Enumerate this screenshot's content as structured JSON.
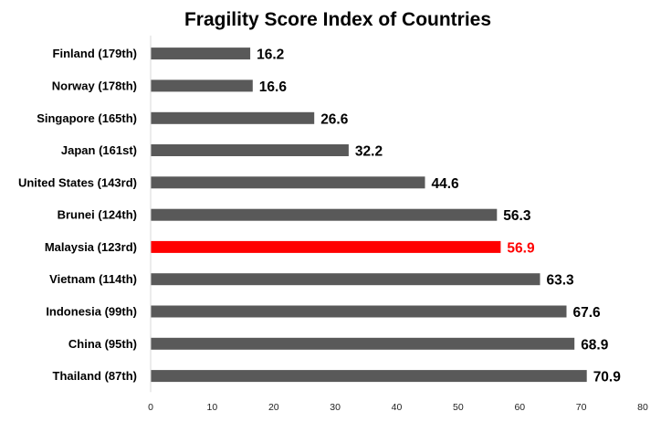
{
  "chart_data": {
    "type": "bar",
    "orientation": "horizontal",
    "title": "Fragility Score Index of Countries",
    "xlabel": "",
    "ylabel": "",
    "categories": [
      "Finland (179th)",
      "Norway (178th)",
      "Singapore (165th)",
      "Japan (161st)",
      "United States (143rd)",
      "Brunei (124th)",
      "Malaysia (123rd)",
      "Vietnam (114th)",
      "Indonesia (99th)",
      "China (95th)",
      "Thailand (87th)"
    ],
    "values": [
      16.2,
      16.6,
      26.6,
      32.2,
      44.6,
      56.3,
      56.9,
      63.3,
      67.6,
      68.9,
      70.9
    ],
    "value_labels": [
      "16.2",
      "16.6",
      "26.6",
      "32.2",
      "44.6",
      "56.3",
      "56.9",
      "63.3",
      "67.6",
      "68.9",
      "70.9"
    ],
    "xlim": [
      0,
      80
    ],
    "xticks": [
      "0",
      "10",
      "20",
      "30",
      "40",
      "50",
      "60",
      "70",
      "80"
    ],
    "grid": false,
    "legend": "none",
    "colors": {
      "bar": "#595959",
      "highlight": "#ff0000",
      "value_label": "#000000",
      "axis": "#d9d9d9"
    },
    "highlight_category": "Malaysia (123rd)"
  }
}
